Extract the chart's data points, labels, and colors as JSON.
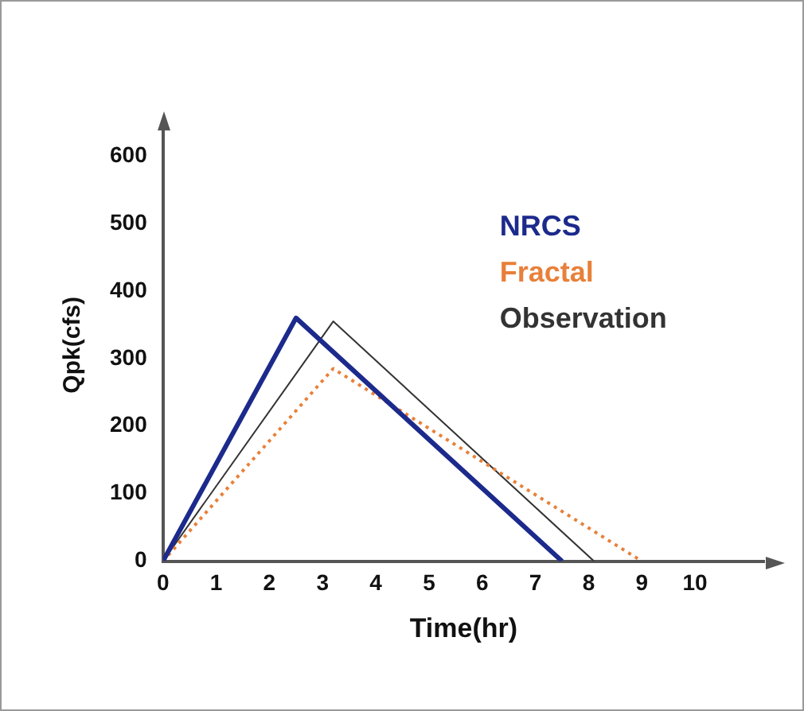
{
  "chart_data": {
    "type": "line",
    "xlabel": "Time(hr)",
    "ylabel": "Qpk(cfs)",
    "xlim": [
      0,
      11.3
    ],
    "xticks": [
      0,
      1,
      2,
      3,
      4,
      5,
      6,
      7,
      8,
      9,
      10
    ],
    "ylim": [
      0,
      640
    ],
    "yticks": [
      0,
      100,
      200,
      300,
      400,
      500,
      600
    ],
    "grid": false,
    "legend": "top right",
    "marker": "none",
    "series": [
      {
        "name": "NRCS",
        "color": "#1c2a8c",
        "line_style": "solid",
        "x": [
          0,
          2.5,
          7.5
        ],
        "values": [
          0,
          360,
          0
        ]
      },
      {
        "name": "Fractal",
        "color": "#e8803a",
        "line_style": "dotted",
        "x": [
          0,
          3.2,
          9
        ],
        "values": [
          0,
          285,
          0
        ]
      },
      {
        "name": "Observation",
        "color": "#333333",
        "line_style": "solid",
        "x": [
          0,
          3.2,
          8.1
        ],
        "values": [
          0,
          355,
          0
        ]
      }
    ]
  }
}
